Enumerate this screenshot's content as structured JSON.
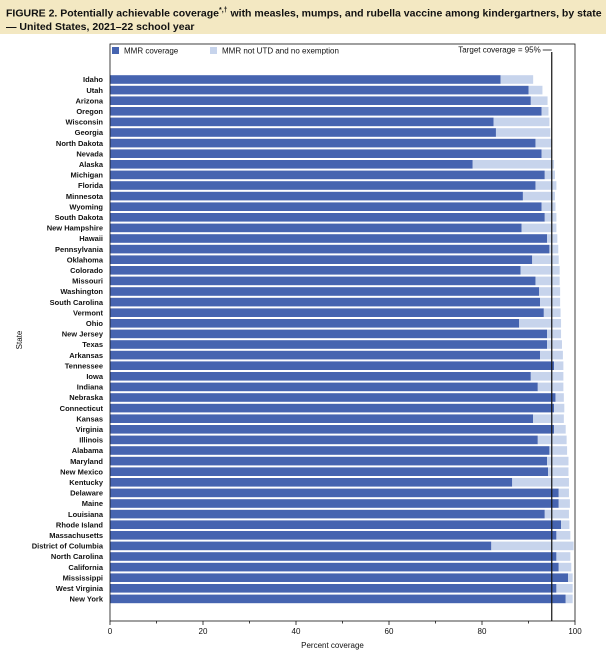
{
  "figure": {
    "title_prefix": "FIGURE 2. Potentially achievable coverage",
    "title_marks": "*,†",
    "title_rest": " with measles, mumps, and rubella vaccine among kindergartners, by state — United States, 2021–22 school year"
  },
  "colors": {
    "mmr": "#4664b0",
    "not_utd": "#c7d4ec",
    "target_line": "#111111",
    "title_bg": "#f3e8c2"
  },
  "chart_data": {
    "type": "bar",
    "orientation": "horizontal",
    "stacked": true,
    "xlabel": "Percent coverage",
    "ylabel": "State",
    "xlim": [
      0,
      100
    ],
    "xticks": [
      "0",
      "20",
      "40",
      "60",
      "80",
      "100"
    ],
    "legend": [
      "MMR coverage",
      "MMR not UTD and no exemption"
    ],
    "target": {
      "value": 95,
      "label": "Target coverage = 95%"
    },
    "categories": [
      "Idaho",
      "Utah",
      "Arizona",
      "Oregon",
      "Wisconsin",
      "Georgia",
      "North Dakota",
      "Nevada",
      "Alaska",
      "Michigan",
      "Florida",
      "Minnesota",
      "Wyoming",
      "South Dakota",
      "New Hampshire",
      "Hawaii",
      "Pennsylvania",
      "Oklahoma",
      "Colorado",
      "Missouri",
      "Washington",
      "South Carolina",
      "Vermont",
      "Ohio",
      "New Jersey",
      "Texas",
      "Arkansas",
      "Tennessee",
      "Iowa",
      "Indiana",
      "Nebraska",
      "Connecticut",
      "Kansas",
      "Virginia",
      "Illinois",
      "Alabama",
      "Maryland",
      "New Mexico",
      "Kentucky",
      "Delaware",
      "Maine",
      "Louisiana",
      "Rhode Island",
      "Massachusetts",
      "District of Columbia",
      "North Carolina",
      "California",
      "Mississippi",
      "West Virginia",
      "New York"
    ],
    "series": [
      {
        "name": "MMR coverage",
        "values": [
          84.0,
          90.0,
          90.5,
          92.8,
          82.5,
          83.0,
          91.5,
          92.8,
          78.0,
          93.5,
          91.5,
          88.8,
          92.8,
          93.5,
          88.5,
          94.0,
          94.5,
          90.8,
          88.3,
          91.5,
          92.3,
          92.5,
          93.3,
          88.0,
          94.0,
          94.0,
          92.5,
          95.5,
          90.5,
          92.0,
          95.8,
          95.5,
          91.0,
          95.5,
          92.0,
          94.5,
          94.0,
          94.2,
          86.5,
          96.5,
          96.5,
          93.5,
          97.0,
          96.0,
          82.0,
          96.0,
          96.5,
          98.5,
          96.0,
          98.0
        ]
      },
      {
        "name": "MMR not UTD and no exemption",
        "values": [
          7.0,
          3.0,
          3.6,
          1.5,
          12.0,
          11.7,
          3.5,
          2.3,
          17.5,
          2.2,
          4.5,
          6.9,
          3.0,
          2.5,
          7.5,
          2.2,
          1.9,
          5.7,
          8.4,
          5.2,
          4.5,
          4.3,
          3.6,
          9.0,
          3.0,
          3.2,
          4.9,
          2.0,
          7.0,
          5.5,
          1.8,
          2.2,
          6.6,
          2.5,
          6.2,
          3.8,
          4.6,
          4.4,
          12.2,
          2.2,
          2.4,
          5.2,
          1.8,
          3.0,
          17.7,
          3.0,
          2.7,
          1.0,
          3.5,
          1.5
        ]
      }
    ]
  }
}
